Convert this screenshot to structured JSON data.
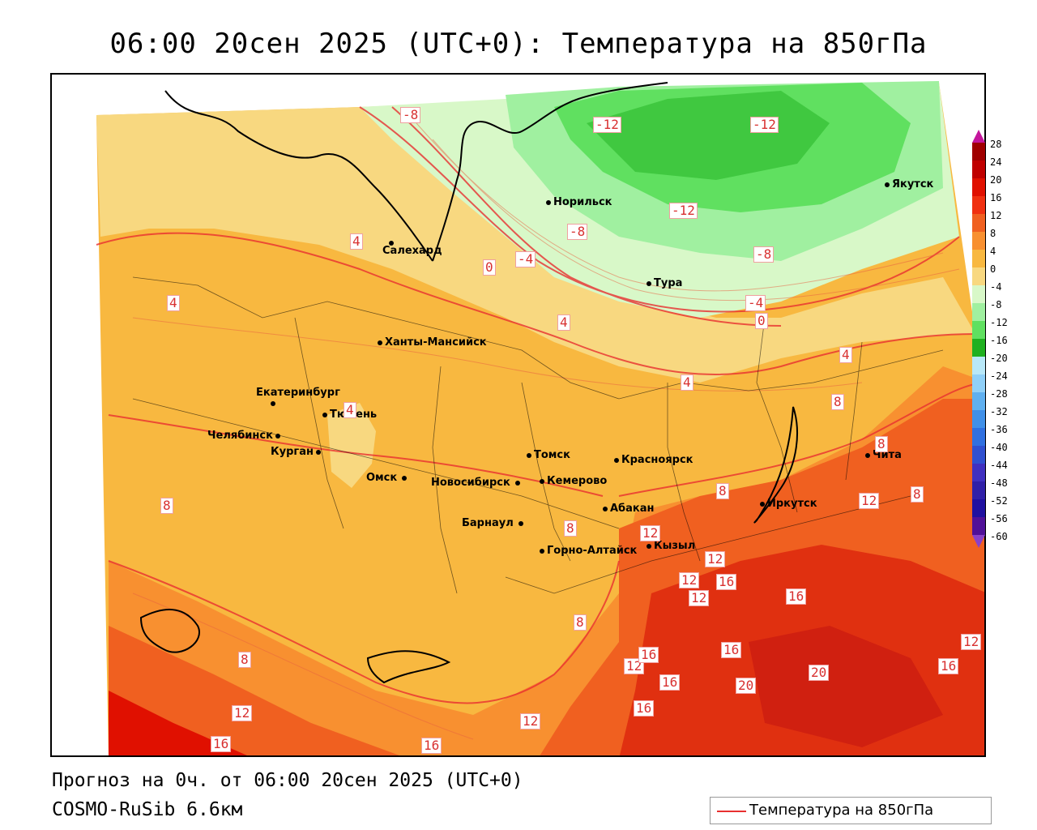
{
  "title": "06:00 20сен 2025 (UTC+0): Температура на 850гПа",
  "footer": {
    "forecast_line": "Прогноз на 0ч. от 06:00 20сен 2025 (UTC+0)",
    "model_line": "COSMO-RuSib 6.6км"
  },
  "legend": {
    "label": "Температура на 850гПа",
    "line_color": "#e83030"
  },
  "colorbar": {
    "ticks": [
      "28",
      "24",
      "20",
      "16",
      "12",
      "8",
      "4",
      "0",
      "-4",
      "-8",
      "-12",
      "-16",
      "-20",
      "-24",
      "-28",
      "-32",
      "-36",
      "-40",
      "-44",
      "-48",
      "-52",
      "-56",
      "-60"
    ],
    "colors": [
      "#a00000",
      "#c00000",
      "#e01000",
      "#f03010",
      "#f06020",
      "#f89030",
      "#f8b840",
      "#f8d880",
      "#d8f8c8",
      "#a0f0a0",
      "#60e060",
      "#20b020",
      "#b8e8f8",
      "#90d0f8",
      "#60b0f0",
      "#4090e8",
      "#3070e0",
      "#3050d0",
      "#4030c0",
      "#3020a8",
      "#2010a0",
      "#501098"
    ],
    "top_tip_color": "#c4169c",
    "bottom_tip_color": "#8a40c8"
  },
  "cities": [
    {
      "name": "Норильск"
    },
    {
      "name": "Якутск"
    },
    {
      "name": "Салехард"
    },
    {
      "name": "Тура"
    },
    {
      "name": "Ханты-Мансийск"
    },
    {
      "name": "Екатеринбург"
    },
    {
      "name": "Тюмень"
    },
    {
      "name": "Челябинск"
    },
    {
      "name": "Курган"
    },
    {
      "name": "Омск"
    },
    {
      "name": "Томск"
    },
    {
      "name": "Красноярск"
    },
    {
      "name": "Новосибирск"
    },
    {
      "name": "Кемерово"
    },
    {
      "name": "Абакан"
    },
    {
      "name": "Иркутск"
    },
    {
      "name": "Чита"
    },
    {
      "name": "Барнаул"
    },
    {
      "name": "Горно-Алтайск"
    },
    {
      "name": "Кызыл"
    }
  ],
  "contour_labels": [
    "-8",
    "-12",
    "-12",
    "-12",
    "-8",
    "-8",
    "-4",
    "-4",
    "0",
    "0",
    "4",
    "4",
    "4",
    "4",
    "4",
    "4",
    "8",
    "8",
    "8",
    "8",
    "8",
    "8",
    "8",
    "8",
    "12",
    "12",
    "12",
    "12",
    "12",
    "12",
    "12",
    "12",
    "12",
    "16",
    "16",
    "16",
    "16",
    "16",
    "16",
    "16",
    "16",
    "16",
    "20",
    "20"
  ]
}
